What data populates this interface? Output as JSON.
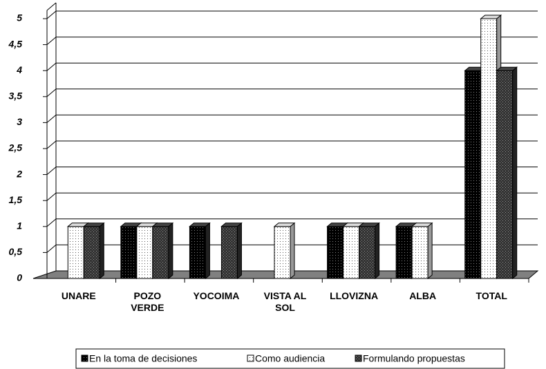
{
  "chart_data": {
    "type": "bar",
    "categories": [
      "UNARE",
      "POZO VERDE",
      "YOCOIMA",
      "VISTA AL SOL",
      "LLOVIZNA",
      "ALBA",
      "TOTAL"
    ],
    "series": [
      {
        "name": "En la toma de decisiones",
        "color": "#000000",
        "values": [
          0,
          1,
          1,
          0,
          1,
          1,
          4
        ]
      },
      {
        "name": "Como audiencia",
        "color": "#ffffff",
        "values": [
          1,
          1,
          0,
          1,
          1,
          1,
          5
        ]
      },
      {
        "name": "Formulando propuestas",
        "color": "#333333",
        "values": [
          1,
          1,
          1,
          0,
          1,
          0,
          4
        ]
      }
    ],
    "ylim": [
      0,
      5
    ],
    "yticks": [
      0,
      {
        "value": 0.5,
        "label": "0,5"
      },
      1,
      {
        "value": 1.5,
        "label": "1,5"
      },
      2,
      {
        "value": 2.5,
        "label": "2,5"
      },
      3,
      {
        "value": 3.5,
        "label": "3,5"
      },
      4,
      {
        "value": 4.5,
        "label": "4,5"
      },
      5
    ],
    "grid": true,
    "legend": "bottom"
  }
}
